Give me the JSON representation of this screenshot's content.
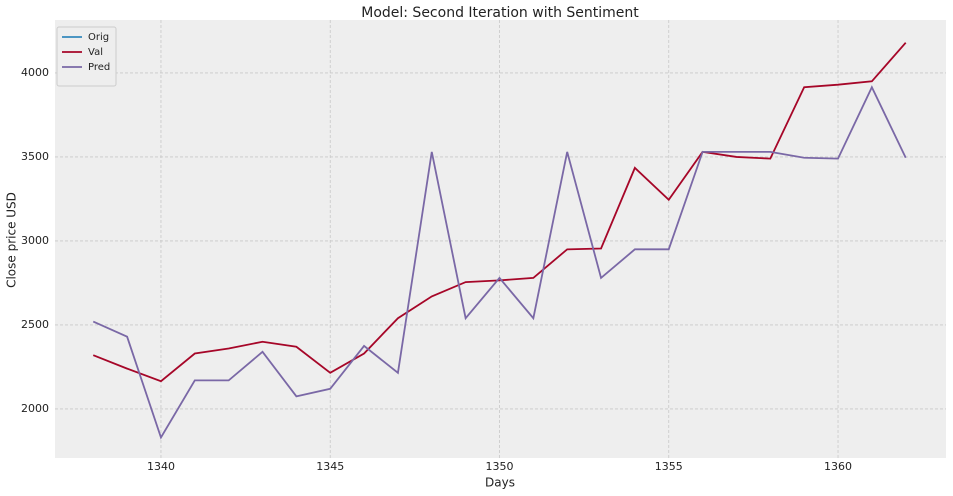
{
  "chart_data": {
    "type": "line",
    "title": "Model: Second Iteration with Sentiment",
    "xlabel": "Days",
    "ylabel": "Close price USD",
    "xlim": [
      1336.87,
      1363.19
    ],
    "xticks": [
      1340,
      1345,
      1350,
      1355,
      1360
    ],
    "ylim": [
      1708,
      4315
    ],
    "yticks": [
      2000,
      2500,
      3000,
      3500,
      4000
    ],
    "grid": true,
    "legend": "upper left",
    "series": [
      {
        "name": "Orig",
        "color": "#348ABD",
        "x": [],
        "values": []
      },
      {
        "name": "Val",
        "color": "#A60628",
        "x": [
          1338,
          1339,
          1340,
          1341,
          1342,
          1343,
          1344,
          1345,
          1346,
          1347,
          1348,
          1349,
          1350,
          1351,
          1352,
          1353,
          1354,
          1355,
          1356,
          1357,
          1358,
          1359,
          1360,
          1361,
          1362
        ],
        "values": [
          2320,
          2240,
          2165,
          2330,
          2360,
          2400,
          2370,
          2215,
          2330,
          2540,
          2670,
          2755,
          2765,
          2780,
          2950,
          2955,
          3435,
          3245,
          3530,
          3500,
          3490,
          3915,
          3930,
          3950,
          4180
        ]
      },
      {
        "name": "Pred",
        "color": "#7A68A6",
        "x": [
          1338,
          1339,
          1340,
          1341,
          1342,
          1343,
          1344,
          1345,
          1346,
          1347,
          1348,
          1349,
          1350,
          1351,
          1352,
          1353,
          1354,
          1355,
          1356,
          1357,
          1358,
          1359,
          1360,
          1361,
          1362
        ],
        "values": [
          2520,
          2430,
          1830,
          2170,
          2170,
          2340,
          2075,
          2120,
          2375,
          2215,
          3530,
          2540,
          2780,
          2540,
          3530,
          2780,
          2950,
          2950,
          3530,
          3530,
          3530,
          3495,
          3490,
          3915,
          3495
        ]
      }
    ]
  }
}
